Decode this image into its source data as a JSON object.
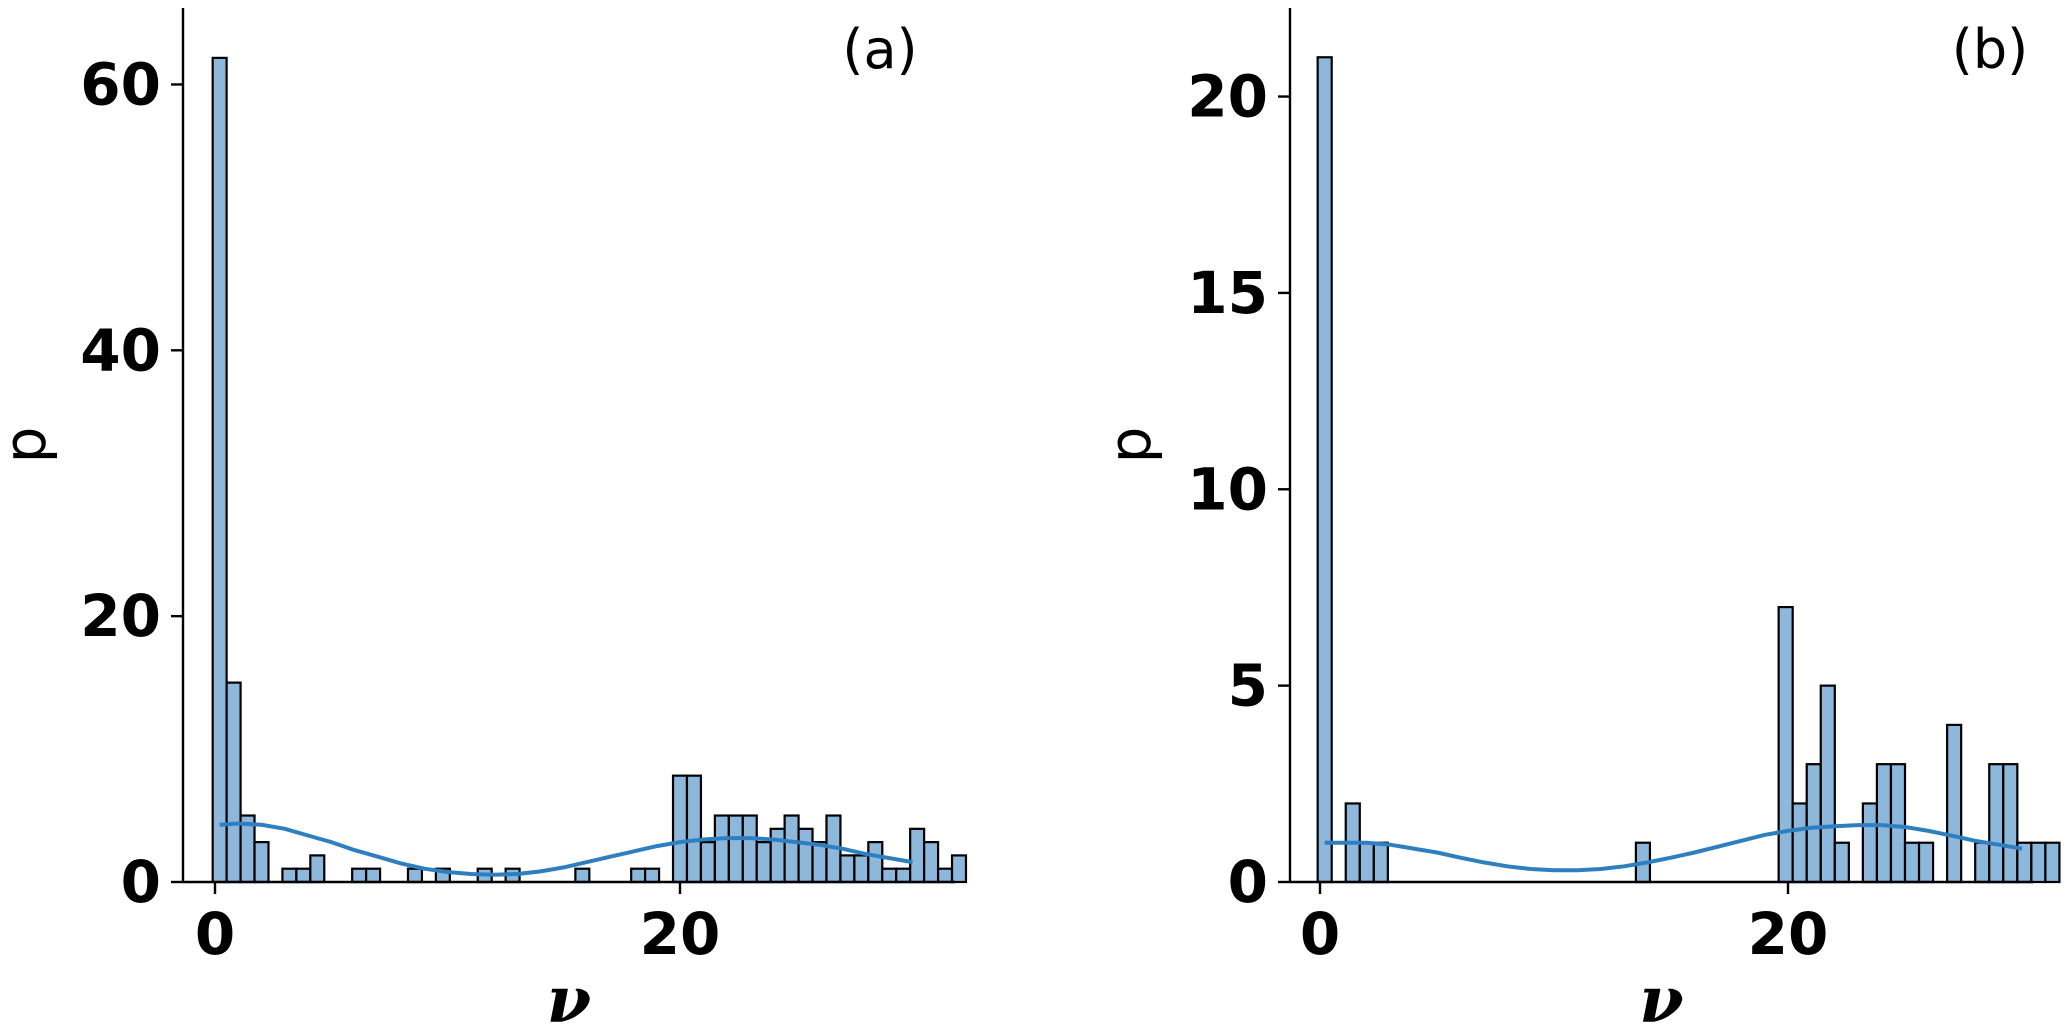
{
  "chart_data": [
    {
      "type": "bar",
      "panel_label": "(a)",
      "xlabel": "ν",
      "ylabel": "p",
      "xlim": [
        -2,
        31.5
      ],
      "ylim": [
        0,
        65
      ],
      "xticks": [
        0,
        20
      ],
      "yticks": [
        0,
        20,
        40,
        60
      ],
      "bin_width": 0.6,
      "bars": [
        {
          "x": 0.2,
          "value": 62
        },
        {
          "x": 0.8,
          "value": 15
        },
        {
          "x": 1.4,
          "value": 5
        },
        {
          "x": 2.0,
          "value": 3
        },
        {
          "x": 2.6,
          "value": 0
        },
        {
          "x": 3.2,
          "value": 1
        },
        {
          "x": 3.8,
          "value": 1
        },
        {
          "x": 4.4,
          "value": 2
        },
        {
          "x": 5.0,
          "value": 0
        },
        {
          "x": 5.6,
          "value": 0
        },
        {
          "x": 6.2,
          "value": 1
        },
        {
          "x": 6.8,
          "value": 1
        },
        {
          "x": 7.4,
          "value": 0
        },
        {
          "x": 8.0,
          "value": 0
        },
        {
          "x": 8.6,
          "value": 1
        },
        {
          "x": 9.2,
          "value": 0
        },
        {
          "x": 9.8,
          "value": 1
        },
        {
          "x": 10.4,
          "value": 0
        },
        {
          "x": 11.0,
          "value": 0
        },
        {
          "x": 11.6,
          "value": 1
        },
        {
          "x": 12.2,
          "value": 0
        },
        {
          "x": 12.8,
          "value": 1
        },
        {
          "x": 15.8,
          "value": 1
        },
        {
          "x": 18.2,
          "value": 1
        },
        {
          "x": 18.8,
          "value": 1
        },
        {
          "x": 19.4,
          "value": 0
        },
        {
          "x": 20.0,
          "value": 8
        },
        {
          "x": 20.6,
          "value": 8
        },
        {
          "x": 21.2,
          "value": 3
        },
        {
          "x": 21.8,
          "value": 5
        },
        {
          "x": 22.4,
          "value": 5
        },
        {
          "x": 23.0,
          "value": 5
        },
        {
          "x": 23.6,
          "value": 3
        },
        {
          "x": 24.2,
          "value": 4
        },
        {
          "x": 24.8,
          "value": 5
        },
        {
          "x": 25.4,
          "value": 4
        },
        {
          "x": 26.0,
          "value": 3
        },
        {
          "x": 26.6,
          "value": 5
        },
        {
          "x": 27.2,
          "value": 2
        },
        {
          "x": 27.8,
          "value": 2
        },
        {
          "x": 28.4,
          "value": 3
        },
        {
          "x": 29.0,
          "value": 1
        },
        {
          "x": 29.6,
          "value": 1
        },
        {
          "x": 30.2,
          "value": 4
        },
        {
          "x": 30.8,
          "value": 3
        },
        {
          "x": 31.4,
          "value": 1
        },
        {
          "x": 32.0,
          "value": 2
        }
      ],
      "kde": {
        "x": [
          0.2,
          1,
          2,
          3,
          4,
          5,
          6,
          7,
          8,
          9,
          10,
          11,
          12,
          13,
          14,
          15,
          16,
          17,
          18,
          19,
          20,
          21,
          22,
          23,
          24,
          25,
          26,
          27,
          28,
          29,
          30
        ],
        "y": [
          4.3,
          4.4,
          4.3,
          4.0,
          3.5,
          3.0,
          2.4,
          1.9,
          1.4,
          1.0,
          0.75,
          0.6,
          0.55,
          0.6,
          0.8,
          1.1,
          1.5,
          1.9,
          2.3,
          2.7,
          3.0,
          3.2,
          3.3,
          3.3,
          3.2,
          3.0,
          2.8,
          2.5,
          2.1,
          1.8,
          1.5
        ]
      }
    },
    {
      "type": "bar",
      "panel_label": "(b)",
      "xlabel": "ν",
      "ylabel": "p",
      "xlim": [
        -2,
        31.5
      ],
      "ylim": [
        0,
        22
      ],
      "xticks": [
        0,
        20
      ],
      "yticks": [
        0,
        5,
        10,
        15,
        20
      ],
      "bin_width": 0.6,
      "bars": [
        {
          "x": 0.2,
          "value": 21
        },
        {
          "x": 0.8,
          "value": 0
        },
        {
          "x": 1.4,
          "value": 2
        },
        {
          "x": 2.0,
          "value": 1
        },
        {
          "x": 2.6,
          "value": 1
        },
        {
          "x": 13.8,
          "value": 1
        },
        {
          "x": 19.9,
          "value": 7
        },
        {
          "x": 20.5,
          "value": 2
        },
        {
          "x": 21.1,
          "value": 3
        },
        {
          "x": 21.7,
          "value": 5
        },
        {
          "x": 22.3,
          "value": 1
        },
        {
          "x": 23.5,
          "value": 2
        },
        {
          "x": 24.1,
          "value": 3
        },
        {
          "x": 24.7,
          "value": 3
        },
        {
          "x": 25.3,
          "value": 1
        },
        {
          "x": 25.9,
          "value": 1
        },
        {
          "x": 27.1,
          "value": 4
        },
        {
          "x": 28.3,
          "value": 1
        },
        {
          "x": 28.9,
          "value": 3
        },
        {
          "x": 29.5,
          "value": 3
        },
        {
          "x": 30.1,
          "value": 1
        },
        {
          "x": 30.7,
          "value": 1
        },
        {
          "x": 31.3,
          "value": 1
        }
      ],
      "kde": {
        "x": [
          0.2,
          1,
          2,
          3,
          4,
          5,
          6,
          7,
          8,
          9,
          10,
          11,
          12,
          13,
          14,
          15,
          16,
          17,
          18,
          19,
          20,
          21,
          22,
          23,
          24,
          25,
          26,
          27,
          28,
          29,
          30
        ],
        "y": [
          1.0,
          1.0,
          1.0,
          0.95,
          0.85,
          0.75,
          0.62,
          0.5,
          0.4,
          0.33,
          0.3,
          0.3,
          0.33,
          0.4,
          0.5,
          0.62,
          0.75,
          0.9,
          1.05,
          1.2,
          1.3,
          1.38,
          1.42,
          1.45,
          1.45,
          1.4,
          1.3,
          1.18,
          1.05,
          0.95,
          0.85
        ]
      }
    }
  ]
}
